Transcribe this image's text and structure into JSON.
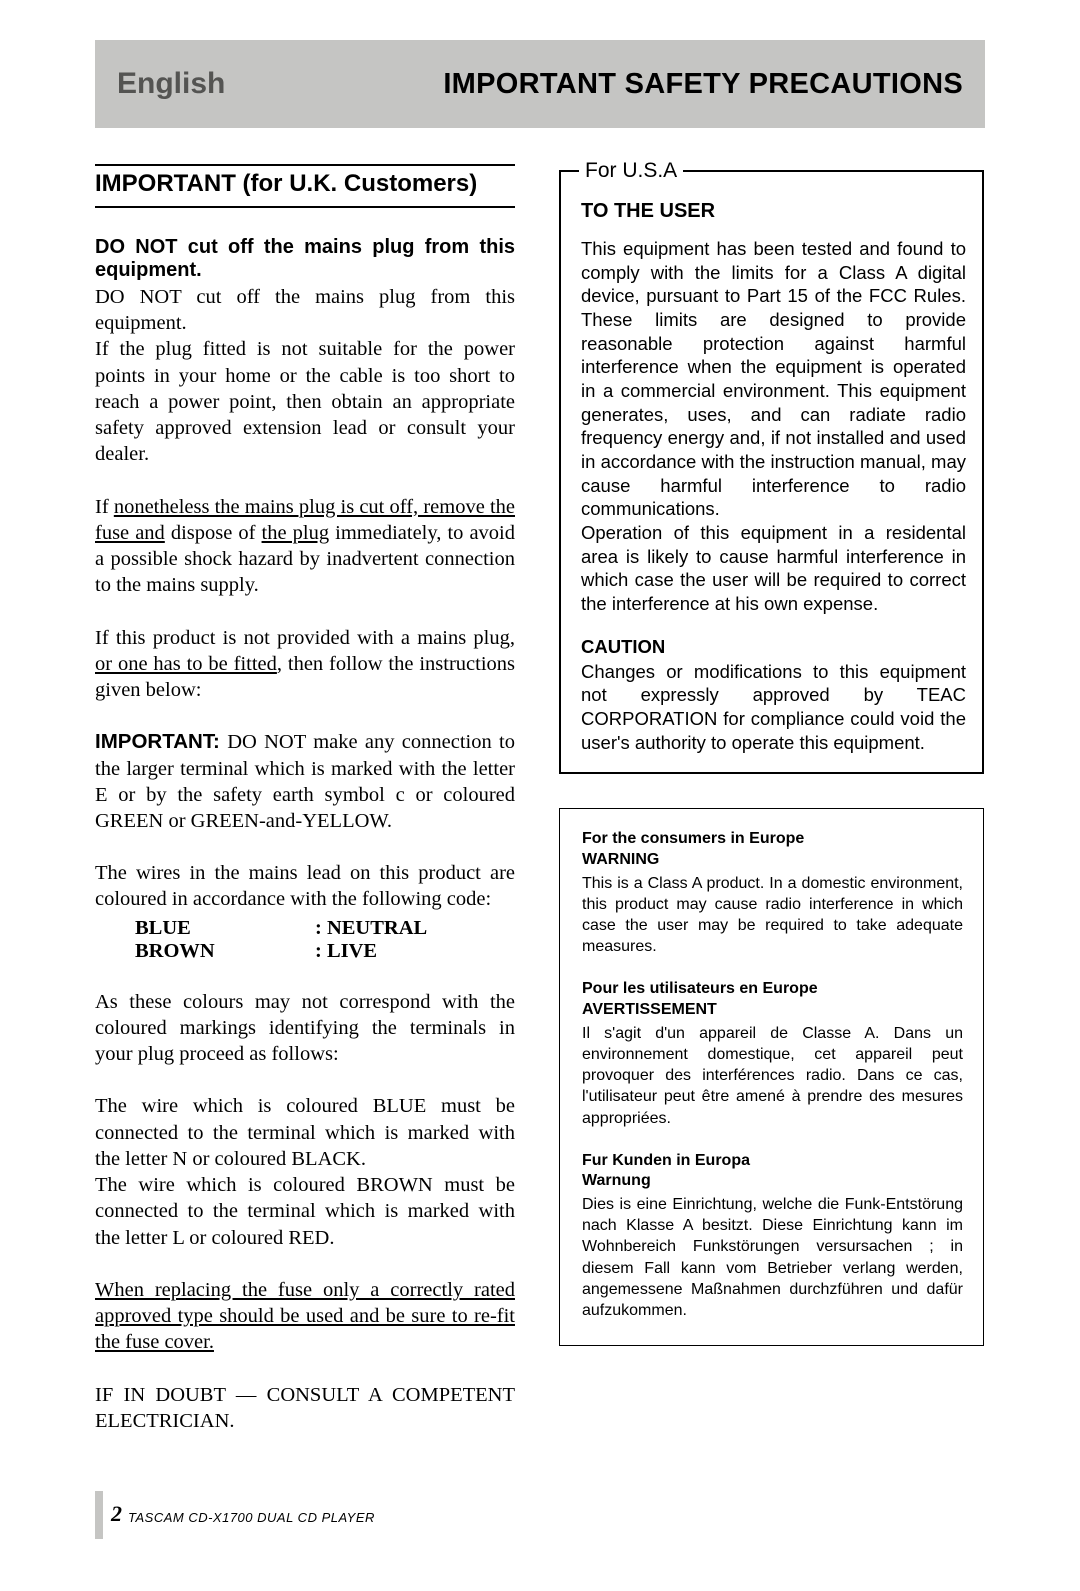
{
  "header": {
    "left": "English",
    "right": "IMPORTANT SAFETY PRECAUTIONS"
  },
  "uk": {
    "title": "IMPORTANT (for U.K. Customers)",
    "subtitle": "DO NOT cut off the mains plug from this equipment.",
    "p1": "DO NOT cut off the mains plug from this equipment.",
    "p2": "If the plug fitted is not suitable for the power points in your home or the cable is too short to reach a power point, then obtain an appropriate safety approved extension lead or consult your dealer.",
    "p3_pre": "If ",
    "p3_u1": "nonetheless the mains plug is cut off, remove the fuse and",
    "p3_mid": " dispose of ",
    "p3_u2": "the plug",
    "p3_post": " immediately, to avoid a possible shock hazard by inadvertent connection to the mains supply.",
    "p4_pre": "If this product is not provided with a mains plug, ",
    "p4_u": "or one has to be fitted",
    "p4_post": ", then follow the instructions given below:",
    "p5_label": "IMPORTANT:",
    "p5": " DO NOT make any connection to the larger terminal which is marked with the letter E or by the safety earth symbol c or coloured GREEN or GREEN-and-YELLOW.",
    "p6": "The wires in the mains lead on this product are coloured in accordance with the following code:",
    "wire1_a": "BLUE",
    "wire1_b": ": NEUTRAL",
    "wire2_a": "BROWN",
    "wire2_b": ": LIVE",
    "p7": "As these colours may not correspond with the coloured markings identifying the terminals in your plug proceed as follows:",
    "p8": "The wire which is coloured BLUE must be connected to the terminal which is marked with the letter N or coloured BLACK.",
    "p9": "The wire which is coloured BROWN must be connected to the terminal which is marked with the letter L or coloured RED.",
    "p10": "When replacing the fuse only a correctly rated approved type should be used and be sure to re-fit the fuse cover.",
    "p11": "IF IN DOUBT — CONSULT A COMPETENT ELECTRICIAN."
  },
  "usa": {
    "legend": "For U.S.A",
    "h1": "TO THE USER",
    "p1": "This equipment has been tested and found to comply with the limits for a Class A digital device, pursuant to Part 15 of the FCC Rules. These limits are designed to provide reasonable protection against harmful interference when the equipment is operated in a commercial environment. This equipment generates, uses, and can radiate radio frequency energy and, if not installed and used in accordance with the instruction manual, may cause harmful interference to radio communications.",
    "p2": "Operation of this equipment in a residental area is likely to cause harmful interference in which case the user will be required to correct the interference at his own expense.",
    "h2": "CAUTION",
    "p3": "Changes or modifications to this equipment not expressly approved by TEAC CORPORATION for compliance could void the user's authority to operate this equipment."
  },
  "eu": {
    "en_h1": "For the consumers in Europe",
    "en_h2": "WARNING",
    "en_p": "This is a Class A product. In a domestic environment, this product may cause radio interference in which case the user may be required to take adequate measures.",
    "fr_h1": "Pour les utilisateurs en Europe",
    "fr_h2": "AVERTISSEMENT",
    "fr_p": "Il s'agit d'un appareil de Classe A. Dans un environnement domestique, cet appareil peut provoquer des interférences radio. Dans ce cas, l'utilisateur peut être amené à prendre des mesures appropriées.",
    "de_h1": "Fur Kunden in Europa",
    "de_h2": "Warnung",
    "de_p": "Dies is eine Einrichtung, welche die Funk-Entstörung nach Klasse A besitzt. Diese Einrichtung kann im Wohnbereich Funkstörungen versursachen ; in diesem Fall kann vom Betrieber verlang werden, angemessene Maßnahmen durchzführen und dafür aufzukommen."
  },
  "footer": {
    "page": "2",
    "text": "TASCAM  CD-X1700  DUAL CD PLAYER"
  },
  "colors": {
    "header_bg": "#c5c5c3",
    "header_left_text": "#545452"
  }
}
